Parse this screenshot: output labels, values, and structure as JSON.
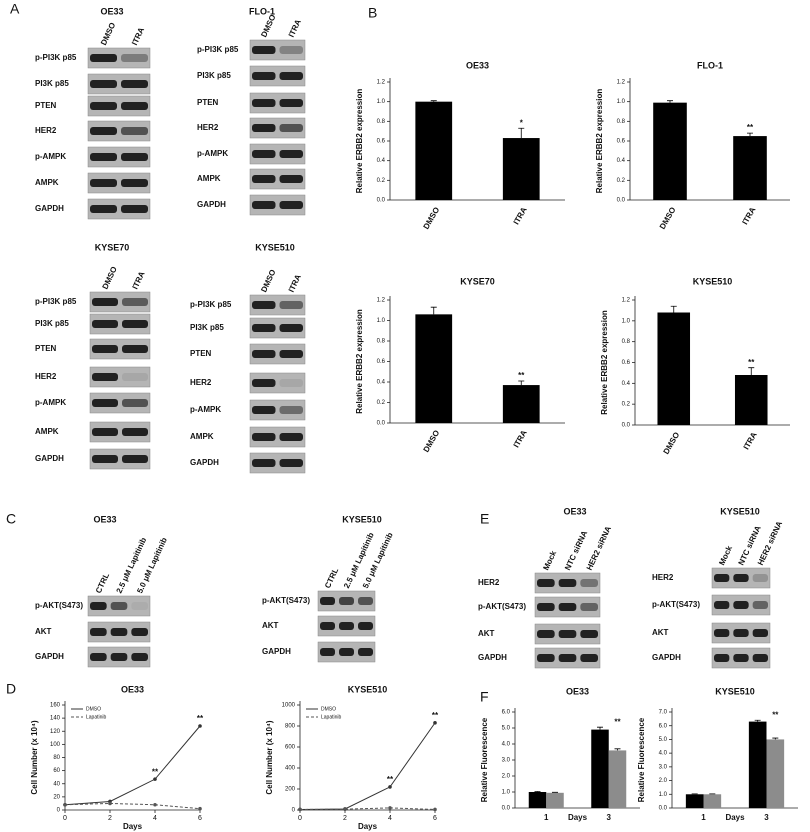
{
  "panel_labels": [
    "A",
    "B",
    "C",
    "D",
    "E",
    "F"
  ],
  "blots": [
    {
      "title": "OE33",
      "lanes": [
        "DMSO",
        "ITRA"
      ],
      "rows": [
        "p-PI3K p85",
        "PI3K p85",
        "PTEN",
        "HER2",
        "p-AMPK",
        "AMPK",
        "GAPDH"
      ]
    },
    {
      "title": "FLO-1",
      "lanes": [
        "DMSO",
        "ITRA"
      ],
      "rows": [
        "p-PI3K p85",
        "PI3K p85",
        "PTEN",
        "HER2",
        "p-AMPK",
        "AMPK",
        "GAPDH"
      ]
    },
    {
      "title": "KYSE70",
      "lanes": [
        "DMSO",
        "ITRA"
      ],
      "rows": [
        "p-PI3K p85",
        "PI3K p85",
        "PTEN",
        "HER2",
        "p-AMPK",
        "AMPK",
        "GAPDH"
      ]
    },
    {
      "title": "KYSE510",
      "lanes": [
        "DMSO",
        "ITRA"
      ],
      "rows": [
        "p-PI3K p85",
        "PI3K p85",
        "PTEN",
        "HER2",
        "p-AMPK",
        "AMPK",
        "GAPDH"
      ]
    },
    {
      "title": "OE33",
      "lanes": [
        "CTRL",
        "2.5 μM Lapitinib",
        "5.0 μM Lapitinib"
      ],
      "rows": [
        "p-AKT(S473)",
        "AKT",
        "GAPDH"
      ]
    },
    {
      "title": "KYSE510",
      "lanes": [
        "CTRL",
        "2.5 μM Lapitinib",
        "5.0 μM Lapitinib"
      ],
      "rows": [
        "p-AKT(S473)",
        "AKT",
        "GAPDH"
      ]
    },
    {
      "title": "OE33",
      "lanes": [
        "Mock",
        "NTC siRNA",
        "HER2 siRNA"
      ],
      "rows": [
        "HER2",
        "p-AKT(S473)",
        "AKT",
        "GAPDH"
      ]
    },
    {
      "title": "KYSE510",
      "lanes": [
        "Mock",
        "NTC siRNA",
        "HER2 siRNA"
      ],
      "rows": [
        "HER2",
        "p-AKT(S473)",
        "AKT",
        "GAPDH"
      ]
    }
  ],
  "chart_data": [
    {
      "type": "bar",
      "title": "OE33",
      "y_label": "Relative ERBB2 expression",
      "categories": [
        "DMSO",
        "ITRA"
      ],
      "values": [
        1.0,
        0.63
      ],
      "errors": [
        0.01,
        0.1
      ],
      "color": "#000000",
      "ylim": [
        0,
        1.2
      ],
      "yticks": [
        {
          "value": 0,
          "label": "0.0"
        },
        {
          "value": 0.2,
          "label": "0.2"
        },
        {
          "value": 0.4,
          "label": "0.4"
        },
        {
          "value": 0.6,
          "label": "0.6"
        },
        {
          "value": 0.8,
          "label": "0.8"
        },
        {
          "value": 1.0,
          "label": "1.0"
        },
        {
          "value": 1.2,
          "label": "1.2"
        }
      ],
      "annotations": [
        {
          "text": "*",
          "x": "ITRA"
        }
      ]
    },
    {
      "type": "bar",
      "title": "FLO-1",
      "y_label": "Relative ERBB2 expression",
      "categories": [
        "DMSO",
        "ITRA"
      ],
      "values": [
        0.99,
        0.65
      ],
      "errors": [
        0.02,
        0.03
      ],
      "color": "#000000",
      "ylim": [
        0,
        1.2
      ],
      "yticks": [
        {
          "value": 0,
          "label": "0.0"
        },
        {
          "value": 0.2,
          "label": "0.2"
        },
        {
          "value": 0.4,
          "label": "0.4"
        },
        {
          "value": 0.6,
          "label": "0.6"
        },
        {
          "value": 0.8,
          "label": "0.8"
        },
        {
          "value": 1.0,
          "label": "1.0"
        },
        {
          "value": 1.2,
          "label": "1.2"
        }
      ],
      "annotations": [
        {
          "text": "**",
          "x": "ITRA"
        }
      ]
    },
    {
      "type": "bar",
      "title": "KYSE70",
      "y_label": "Relative ERBB2 expression",
      "categories": [
        "DMSO",
        "ITRA"
      ],
      "values": [
        1.06,
        0.37
      ],
      "errors": [
        0.07,
        0.04
      ],
      "color": "#000000",
      "ylim": [
        0,
        1.2
      ],
      "yticks": [
        {
          "value": 0,
          "label": "0.0"
        },
        {
          "value": 0.2,
          "label": "0.2"
        },
        {
          "value": 0.4,
          "label": "0.4"
        },
        {
          "value": 0.6,
          "label": "0.6"
        },
        {
          "value": 0.8,
          "label": "0.8"
        },
        {
          "value": 1.0,
          "label": "1.0"
        },
        {
          "value": 1.2,
          "label": "1.2"
        }
      ],
      "annotations": [
        {
          "text": "**",
          "x": "ITRA"
        }
      ]
    },
    {
      "type": "bar",
      "title": "KYSE510",
      "y_label": "Relative ERBB2 expression",
      "categories": [
        "DMSO",
        "ITRA"
      ],
      "values": [
        1.08,
        0.48
      ],
      "errors": [
        0.06,
        0.07
      ],
      "color": "#000000",
      "ylim": [
        0,
        1.2
      ],
      "yticks": [
        {
          "value": 0,
          "label": "0.0"
        },
        {
          "value": 0.2,
          "label": "0.2"
        },
        {
          "value": 0.4,
          "label": "0.4"
        },
        {
          "value": 0.6,
          "label": "0.6"
        },
        {
          "value": 0.8,
          "label": "0.8"
        },
        {
          "value": 1.0,
          "label": "1.0"
        },
        {
          "value": 1.2,
          "label": "1.2"
        }
      ],
      "annotations": [
        {
          "text": "**",
          "x": "ITRA"
        }
      ]
    },
    {
      "type": "line",
      "title": "OE33",
      "x_label": "Days",
      "y_label": "Cell Number (x 10⁴)",
      "x": [
        0,
        2,
        4,
        6
      ],
      "series": [
        {
          "name": "DMSO",
          "color": "#333333",
          "style": "solid",
          "values": [
            8,
            13,
            47,
            128
          ]
        },
        {
          "name": "Lapatinib",
          "color": "#555555",
          "style": "dashed",
          "values": [
            8,
            10,
            8,
            2
          ]
        }
      ],
      "xlim": [
        0,
        6
      ],
      "xticks": [
        0,
        2,
        4,
        6
      ],
      "ylim": [
        0,
        160
      ],
      "yticks": [
        0,
        20,
        40,
        60,
        80,
        100,
        120,
        140,
        160
      ],
      "legend": "upper left",
      "annotations": [
        {
          "text": "**",
          "x": 4
        },
        {
          "text": "**",
          "x": 6
        }
      ]
    },
    {
      "type": "line",
      "title": "KYSE510",
      "x_label": "Days",
      "y_label": "Cell Number (x 10⁴)",
      "x": [
        0,
        2,
        4,
        6
      ],
      "series": [
        {
          "name": "DMSO",
          "color": "#333333",
          "style": "solid",
          "values": [
            5,
            10,
            220,
            830
          ]
        },
        {
          "name": "Lapatinib",
          "color": "#555555",
          "style": "dashed",
          "values": [
            5,
            8,
            20,
            5
          ]
        }
      ],
      "xlim": [
        0,
        6
      ],
      "xticks": [
        0,
        2,
        4,
        6
      ],
      "ylim": [
        0,
        1000
      ],
      "yticks": [
        0,
        200,
        400,
        600,
        800,
        1000
      ],
      "legend": "upper left",
      "annotations": [
        {
          "text": "**",
          "x": 4
        },
        {
          "text": "**",
          "x": 6
        }
      ]
    },
    {
      "type": "bar",
      "title": "OE33",
      "x_label": "Days",
      "y_label": "Relative Fluorescence",
      "categories": [
        "1",
        "3"
      ],
      "series": [
        {
          "color": "#000000",
          "values": [
            1.0,
            4.9
          ],
          "errors": [
            0.03,
            0.15
          ]
        },
        {
          "color": "#8c8c8c",
          "values": [
            0.95,
            3.6
          ],
          "errors": [
            0.03,
            0.1
          ]
        }
      ],
      "ylim": [
        0,
        6
      ],
      "yticks": [
        {
          "value": 0,
          "label": "0.0"
        },
        {
          "value": 1,
          "label": "1.0"
        },
        {
          "value": 2,
          "label": "2.0"
        },
        {
          "value": 3,
          "label": "3.0"
        },
        {
          "value": 4,
          "label": "4.0"
        },
        {
          "value": 5,
          "label": "5.0"
        },
        {
          "value": 6,
          "label": "6.0"
        }
      ],
      "annotations": [
        {
          "text": "**",
          "x": "3"
        }
      ]
    },
    {
      "type": "bar",
      "title": "KYSE510",
      "x_label": "Days",
      "y_label": "Relative Fluorescence",
      "categories": [
        "1",
        "3"
      ],
      "series": [
        {
          "color": "#000000",
          "values": [
            1.0,
            6.3
          ],
          "errors": [
            0.03,
            0.1
          ]
        },
        {
          "color": "#8c8c8c",
          "values": [
            1.0,
            5.0
          ],
          "errors": [
            0.03,
            0.1
          ]
        }
      ],
      "ylim": [
        0,
        7
      ],
      "yticks": [
        {
          "value": 0,
          "label": "0.0"
        },
        {
          "value": 1,
          "label": "1.0"
        },
        {
          "value": 2,
          "label": "2.0"
        },
        {
          "value": 3,
          "label": "3.0"
        },
        {
          "value": 4,
          "label": "4.0"
        },
        {
          "value": 5,
          "label": "5.0"
        },
        {
          "value": 6,
          "label": "6.0"
        },
        {
          "value": 7,
          "label": "7.0"
        }
      ],
      "annotations": [
        {
          "text": "**",
          "x": "3"
        }
      ]
    }
  ]
}
